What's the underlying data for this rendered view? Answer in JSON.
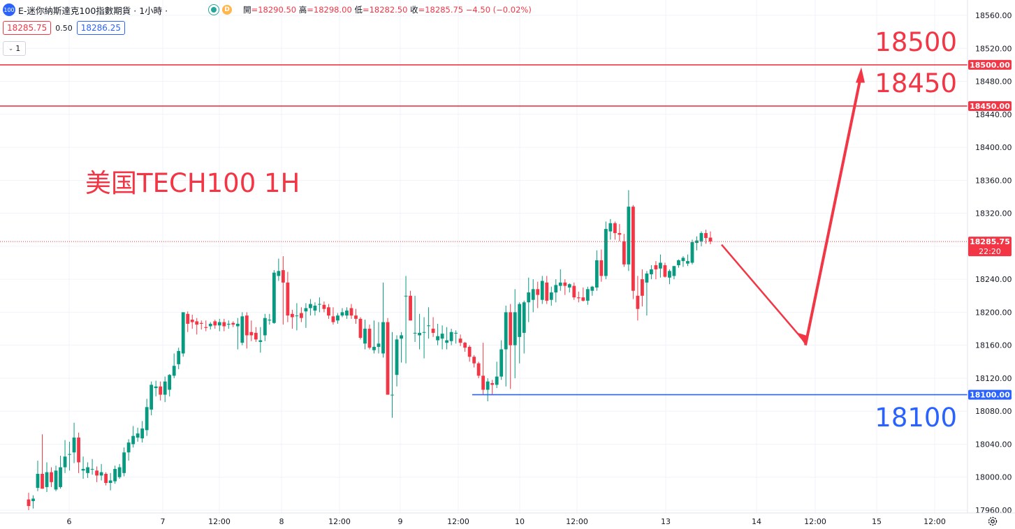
{
  "header": {
    "symbol_badge": "100",
    "title": "E-迷你納斯達克100指數期貨 · 1小時 ·",
    "d_badge": "D",
    "open_label": "開",
    "open": "=18290.50",
    "high_label": "高",
    "high": "=18298.00",
    "low_label": "低",
    "low": "=18282.50",
    "close_label": "收",
    "close": "=18285.75",
    "change": "−4.50 (−0.02%)",
    "sell_price": "18285.75",
    "spread": "0.50",
    "buy_price": "18286.25",
    "indicator_count": "1"
  },
  "colors": {
    "up": "#089981",
    "down": "#f23645",
    "resistance": "#f23645",
    "support": "#2962ff",
    "annotation": "#f23645",
    "support_label": "#2962ff"
  },
  "annotations": {
    "chart_label": "美国TECH100 1H",
    "level_18500": "18500",
    "level_18450": "18450",
    "level_18100": "18100",
    "axis_tag_18500": "18500.00",
    "axis_tag_18450": "18450.00",
    "axis_tag_18100": "18100.00",
    "axis_tag_last": "18285.75",
    "axis_tag_countdown": "22:20"
  },
  "chart_data": {
    "type": "candlestick",
    "title": "E-迷你納斯達克100指數期貨 · 1小時",
    "ylim": [
      17960,
      18560
    ],
    "y_ticks": [
      17960,
      18000,
      18040,
      18080,
      18120,
      18160,
      18200,
      18240,
      18280,
      18320,
      18360,
      18400,
      18440,
      18480,
      18520,
      18560
    ],
    "y_tick_labels": [
      "17960.00",
      "18000.00",
      "18040.00",
      "18080.00",
      "18120.00",
      "18160.00",
      "18200.00",
      "18240.00",
      "18280.00",
      "18320.00",
      "18360.00",
      "18400.00",
      "18440.00",
      "18480.00",
      "18520.00",
      "18560.00"
    ],
    "x_ticks": [
      "6",
      "7",
      "12:00",
      "8",
      "12:00",
      "9",
      "12:00",
      "10",
      "12:00",
      "13",
      "14",
      "12:00",
      "15",
      "12:00"
    ],
    "last_price": 18285.75,
    "horizontal_levels": [
      {
        "value": 18500,
        "color": "#f23645",
        "label": "18500"
      },
      {
        "value": 18450,
        "color": "#f23645",
        "label": "18450"
      },
      {
        "value": 18100,
        "color": "#2962ff",
        "label": "18100"
      }
    ],
    "projection_path": [
      {
        "step": 0,
        "price": 18287
      },
      {
        "step": 12,
        "price": 18160
      },
      {
        "step": 20,
        "price": 18497
      }
    ],
    "candles": [
      {
        "o": 17973,
        "h": 17981,
        "l": 17960,
        "c": 17965
      },
      {
        "o": 17971,
        "h": 17978,
        "l": 17962,
        "c": 17974
      },
      {
        "o": 17987,
        "h": 18020,
        "l": 17983,
        "c": 18004
      },
      {
        "o": 18004,
        "h": 18052,
        "l": 17986,
        "c": 17986
      },
      {
        "o": 17988,
        "h": 18018,
        "l": 17982,
        "c": 18006
      },
      {
        "o": 18006,
        "h": 18012,
        "l": 17988,
        "c": 17994
      },
      {
        "o": 17985,
        "h": 18014,
        "l": 17983,
        "c": 18008
      },
      {
        "o": 17988,
        "h": 18026,
        "l": 17986,
        "c": 18012
      },
      {
        "o": 18012,
        "h": 18045,
        "l": 18005,
        "c": 18025
      },
      {
        "o": 18028,
        "h": 18043,
        "l": 18008,
        "c": 18028
      },
      {
        "o": 18030,
        "h": 18066,
        "l": 18017,
        "c": 18048
      },
      {
        "o": 18048,
        "h": 18054,
        "l": 18005,
        "c": 18018
      },
      {
        "o": 18008,
        "h": 18025,
        "l": 17998,
        "c": 18010
      },
      {
        "o": 18005,
        "h": 18018,
        "l": 17999,
        "c": 18012
      },
      {
        "o": 18010,
        "h": 18022,
        "l": 18003,
        "c": 18010
      },
      {
        "o": 18008,
        "h": 18013,
        "l": 17994,
        "c": 18002
      },
      {
        "o": 18002,
        "h": 18016,
        "l": 17996,
        "c": 18006
      },
      {
        "o": 18004,
        "h": 18006,
        "l": 17990,
        "c": 17993
      },
      {
        "o": 17993,
        "h": 18005,
        "l": 17984,
        "c": 17996
      },
      {
        "o": 17995,
        "h": 18014,
        "l": 17992,
        "c": 18010
      },
      {
        "o": 18000,
        "h": 18016,
        "l": 17998,
        "c": 18012
      },
      {
        "o": 18005,
        "h": 18036,
        "l": 18001,
        "c": 18030
      },
      {
        "o": 18030,
        "h": 18046,
        "l": 18020,
        "c": 18042
      },
      {
        "o": 18040,
        "h": 18062,
        "l": 18036,
        "c": 18050
      },
      {
        "o": 18048,
        "h": 18060,
        "l": 18043,
        "c": 18053
      },
      {
        "o": 18047,
        "h": 18068,
        "l": 18042,
        "c": 18059
      },
      {
        "o": 18057,
        "h": 18095,
        "l": 18050,
        "c": 18085
      },
      {
        "o": 18082,
        "h": 18116,
        "l": 18075,
        "c": 18112
      },
      {
        "o": 18108,
        "h": 18117,
        "l": 18098,
        "c": 18110
      },
      {
        "o": 18110,
        "h": 18116,
        "l": 18093,
        "c": 18100
      },
      {
        "o": 18100,
        "h": 18122,
        "l": 18091,
        "c": 18116
      },
      {
        "o": 18106,
        "h": 18125,
        "l": 18098,
        "c": 18124
      },
      {
        "o": 18123,
        "h": 18150,
        "l": 18120,
        "c": 18135
      },
      {
        "o": 18137,
        "h": 18157,
        "l": 18131,
        "c": 18153
      },
      {
        "o": 18150,
        "h": 18200,
        "l": 18146,
        "c": 18200
      },
      {
        "o": 18198,
        "h": 18201,
        "l": 18176,
        "c": 18186
      },
      {
        "o": 18191,
        "h": 18197,
        "l": 18180,
        "c": 18188
      },
      {
        "o": 18189,
        "h": 18193,
        "l": 18173,
        "c": 18185
      },
      {
        "o": 18187,
        "h": 18190,
        "l": 18179,
        "c": 18186
      },
      {
        "o": 18182,
        "h": 18190,
        "l": 18177,
        "c": 18181
      },
      {
        "o": 18183,
        "h": 18188,
        "l": 18179,
        "c": 18186
      },
      {
        "o": 18189,
        "h": 18191,
        "l": 18180,
        "c": 18184
      },
      {
        "o": 18184,
        "h": 18192,
        "l": 18177,
        "c": 18188
      },
      {
        "o": 18188,
        "h": 18192,
        "l": 18177,
        "c": 18183
      },
      {
        "o": 18185,
        "h": 18190,
        "l": 18180,
        "c": 18186
      },
      {
        "o": 18187,
        "h": 18189,
        "l": 18182,
        "c": 18185
      },
      {
        "o": 18183,
        "h": 18193,
        "l": 18155,
        "c": 18186
      },
      {
        "o": 18163,
        "h": 18200,
        "l": 18160,
        "c": 18195
      },
      {
        "o": 18196,
        "h": 18200,
        "l": 18156,
        "c": 18172
      },
      {
        "o": 18176,
        "h": 18190,
        "l": 18165,
        "c": 18172
      },
      {
        "o": 18175,
        "h": 18182,
        "l": 18164,
        "c": 18167
      },
      {
        "o": 18164,
        "h": 18182,
        "l": 18151,
        "c": 18166
      },
      {
        "o": 18172,
        "h": 18198,
        "l": 18165,
        "c": 18193
      },
      {
        "o": 18190,
        "h": 18198,
        "l": 18185,
        "c": 18191
      },
      {
        "o": 18187,
        "h": 18251,
        "l": 18186,
        "c": 18248
      },
      {
        "o": 18244,
        "h": 18265,
        "l": 18238,
        "c": 18250
      },
      {
        "o": 18251,
        "h": 18268,
        "l": 18185,
        "c": 18236
      },
      {
        "o": 18236,
        "h": 18249,
        "l": 18188,
        "c": 18196
      },
      {
        "o": 18198,
        "h": 18203,
        "l": 18180,
        "c": 18194
      },
      {
        "o": 18196,
        "h": 18211,
        "l": 18178,
        "c": 18196
      },
      {
        "o": 18199,
        "h": 18206,
        "l": 18188,
        "c": 18193
      },
      {
        "o": 18201,
        "h": 18211,
        "l": 18181,
        "c": 18205
      },
      {
        "o": 18205,
        "h": 18216,
        "l": 18196,
        "c": 18210
      },
      {
        "o": 18202,
        "h": 18212,
        "l": 18196,
        "c": 18208
      },
      {
        "o": 18210,
        "h": 18218,
        "l": 18200,
        "c": 18210
      },
      {
        "o": 18209,
        "h": 18213,
        "l": 18200,
        "c": 18204
      },
      {
        "o": 18206,
        "h": 18210,
        "l": 18192,
        "c": 18196
      },
      {
        "o": 18195,
        "h": 18206,
        "l": 18185,
        "c": 18188
      },
      {
        "o": 18190,
        "h": 18199,
        "l": 18186,
        "c": 18196
      },
      {
        "o": 18196,
        "h": 18205,
        "l": 18194,
        "c": 18200
      },
      {
        "o": 18196,
        "h": 18206,
        "l": 18192,
        "c": 18202
      },
      {
        "o": 18205,
        "h": 18210,
        "l": 18192,
        "c": 18196
      },
      {
        "o": 18196,
        "h": 18204,
        "l": 18186,
        "c": 18192
      },
      {
        "o": 18192,
        "h": 18194,
        "l": 18167,
        "c": 18169
      },
      {
        "o": 18162,
        "h": 18191,
        "l": 18155,
        "c": 18180
      },
      {
        "o": 18180,
        "h": 18185,
        "l": 18155,
        "c": 18157
      },
      {
        "o": 18154,
        "h": 18190,
        "l": 18150,
        "c": 18158
      },
      {
        "o": 18158,
        "h": 18188,
        "l": 18150,
        "c": 18162
      },
      {
        "o": 18150,
        "h": 18236,
        "l": 18145,
        "c": 18188
      },
      {
        "o": 18188,
        "h": 18193,
        "l": 18100,
        "c": 18100
      },
      {
        "o": 18100,
        "h": 18176,
        "l": 18072,
        "c": 18100
      },
      {
        "o": 18124,
        "h": 18172,
        "l": 18110,
        "c": 18167
      },
      {
        "o": 18168,
        "h": 18176,
        "l": 18139,
        "c": 18172
      },
      {
        "o": 18220,
        "h": 18244,
        "l": 18138,
        "c": 18220
      },
      {
        "o": 18220,
        "h": 18226,
        "l": 18190,
        "c": 18190
      },
      {
        "o": 18175,
        "h": 18220,
        "l": 18164,
        "c": 18175
      },
      {
        "o": 18172,
        "h": 18198,
        "l": 18155,
        "c": 18175
      },
      {
        "o": 18176,
        "h": 18194,
        "l": 18144,
        "c": 18176
      },
      {
        "o": 18184,
        "h": 18206,
        "l": 18168,
        "c": 18184
      },
      {
        "o": 18180,
        "h": 18194,
        "l": 18170,
        "c": 18175
      },
      {
        "o": 18166,
        "h": 18186,
        "l": 18160,
        "c": 18171
      },
      {
        "o": 18168,
        "h": 18184,
        "l": 18155,
        "c": 18174
      },
      {
        "o": 18163,
        "h": 18182,
        "l": 18155,
        "c": 18166
      },
      {
        "o": 18165,
        "h": 18180,
        "l": 18160,
        "c": 18176
      },
      {
        "o": 18175,
        "h": 18178,
        "l": 18162,
        "c": 18175
      },
      {
        "o": 18168,
        "h": 18173,
        "l": 18159,
        "c": 18163
      },
      {
        "o": 18163,
        "h": 18164,
        "l": 18152,
        "c": 18157
      },
      {
        "o": 18158,
        "h": 18160,
        "l": 18140,
        "c": 18146
      },
      {
        "o": 18146,
        "h": 18148,
        "l": 18133,
        "c": 18138
      },
      {
        "o": 18138,
        "h": 18140,
        "l": 18120,
        "c": 18123
      },
      {
        "o": 18123,
        "h": 18163,
        "l": 18100,
        "c": 18106
      },
      {
        "o": 18106,
        "h": 18120,
        "l": 18092,
        "c": 18116
      },
      {
        "o": 18114,
        "h": 18118,
        "l": 18100,
        "c": 18112
      },
      {
        "o": 18112,
        "h": 18140,
        "l": 18108,
        "c": 18122
      },
      {
        "o": 18122,
        "h": 18166,
        "l": 18118,
        "c": 18155
      },
      {
        "o": 18155,
        "h": 18208,
        "l": 18110,
        "c": 18200
      },
      {
        "o": 18200,
        "h": 18210,
        "l": 18107,
        "c": 18160
      },
      {
        "o": 18160,
        "h": 18228,
        "l": 18120,
        "c": 18200
      },
      {
        "o": 18170,
        "h": 18212,
        "l": 18138,
        "c": 18210
      },
      {
        "o": 18175,
        "h": 18214,
        "l": 18150,
        "c": 18212
      },
      {
        "o": 18212,
        "h": 18242,
        "l": 18188,
        "c": 18224
      },
      {
        "o": 18215,
        "h": 18240,
        "l": 18200,
        "c": 18228
      },
      {
        "o": 18228,
        "h": 18237,
        "l": 18205,
        "c": 18221
      },
      {
        "o": 18215,
        "h": 18244,
        "l": 18210,
        "c": 18238
      },
      {
        "o": 18236,
        "h": 18244,
        "l": 18210,
        "c": 18214
      },
      {
        "o": 18215,
        "h": 18231,
        "l": 18208,
        "c": 18224
      },
      {
        "o": 18224,
        "h": 18240,
        "l": 18212,
        "c": 18233
      },
      {
        "o": 18232,
        "h": 18252,
        "l": 18226,
        "c": 18236
      },
      {
        "o": 18236,
        "h": 18240,
        "l": 18221,
        "c": 18232
      },
      {
        "o": 18230,
        "h": 18235,
        "l": 18224,
        "c": 18234
      },
      {
        "o": 18232,
        "h": 18236,
        "l": 18215,
        "c": 18218
      },
      {
        "o": 18218,
        "h": 18225,
        "l": 18212,
        "c": 18217
      },
      {
        "o": 18218,
        "h": 18230,
        "l": 18213,
        "c": 18214
      },
      {
        "o": 18214,
        "h": 18231,
        "l": 18209,
        "c": 18228
      },
      {
        "o": 18226,
        "h": 18232,
        "l": 18220,
        "c": 18231
      },
      {
        "o": 18230,
        "h": 18275,
        "l": 18226,
        "c": 18263
      },
      {
        "o": 18263,
        "h": 18276,
        "l": 18237,
        "c": 18244
      },
      {
        "o": 18244,
        "h": 18310,
        "l": 18240,
        "c": 18301
      },
      {
        "o": 18298,
        "h": 18313,
        "l": 18288,
        "c": 18308
      },
      {
        "o": 18308,
        "h": 18310,
        "l": 18288,
        "c": 18296
      },
      {
        "o": 18296,
        "h": 18307,
        "l": 18286,
        "c": 18294
      },
      {
        "o": 18286,
        "h": 18295,
        "l": 18255,
        "c": 18258
      },
      {
        "o": 18258,
        "h": 18348,
        "l": 18250,
        "c": 18328
      },
      {
        "o": 18328,
        "h": 18330,
        "l": 18216,
        "c": 18226
      },
      {
        "o": 18220,
        "h": 18244,
        "l": 18190,
        "c": 18204
      },
      {
        "o": 18240,
        "h": 18252,
        "l": 18207,
        "c": 18220
      },
      {
        "o": 18236,
        "h": 18250,
        "l": 18196,
        "c": 18247
      },
      {
        "o": 18246,
        "h": 18257,
        "l": 18240,
        "c": 18252
      },
      {
        "o": 18257,
        "h": 18262,
        "l": 18240,
        "c": 18252
      },
      {
        "o": 18253,
        "h": 18270,
        "l": 18242,
        "c": 18260
      },
      {
        "o": 18257,
        "h": 18260,
        "l": 18242,
        "c": 18243
      },
      {
        "o": 18242,
        "h": 18252,
        "l": 18234,
        "c": 18250
      },
      {
        "o": 18244,
        "h": 18256,
        "l": 18240,
        "c": 18256
      },
      {
        "o": 18257,
        "h": 18264,
        "l": 18254,
        "c": 18263
      },
      {
        "o": 18262,
        "h": 18268,
        "l": 18255,
        "c": 18266
      },
      {
        "o": 18259,
        "h": 18270,
        "l": 18256,
        "c": 18262
      },
      {
        "o": 18260,
        "h": 18288,
        "l": 18258,
        "c": 18285
      },
      {
        "o": 18284,
        "h": 18292,
        "l": 18275,
        "c": 18287
      },
      {
        "o": 18286,
        "h": 18298,
        "l": 18280,
        "c": 18296
      },
      {
        "o": 18296,
        "h": 18300,
        "l": 18283,
        "c": 18290
      },
      {
        "o": 18290.5,
        "h": 18298,
        "l": 18282.5,
        "c": 18285.75
      }
    ]
  }
}
